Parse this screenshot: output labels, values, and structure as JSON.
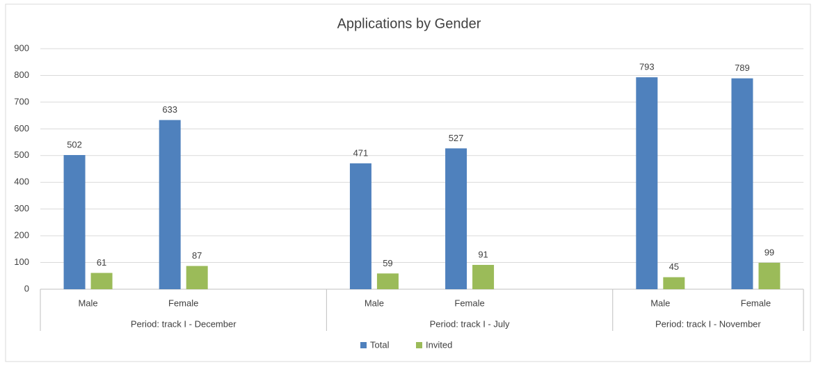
{
  "chart_data": {
    "type": "bar",
    "title": "Applications by Gender",
    "categories": [
      "Male",
      "Female",
      null,
      "Male",
      "Female",
      null,
      "Male",
      "Female"
    ],
    "category_groups": [
      {
        "label": "Period: track I - December",
        "count": 3
      },
      {
        "label": "Period: track I - July",
        "count": 3
      },
      {
        "label": "Period: track I - November",
        "count": 2
      }
    ],
    "series": [
      {
        "name": "Total",
        "color": "#4f81bd",
        "values": [
          502,
          633,
          null,
          471,
          527,
          null,
          793,
          789
        ]
      },
      {
        "name": "Invited",
        "color": "#9bbb59",
        "values": [
          61,
          87,
          null,
          59,
          91,
          null,
          45,
          99
        ]
      }
    ],
    "ylim": [
      0,
      900
    ],
    "yticks": [
      0,
      100,
      200,
      300,
      400,
      500,
      600,
      700,
      800,
      900
    ],
    "grid": true,
    "legend": "bottom"
  }
}
